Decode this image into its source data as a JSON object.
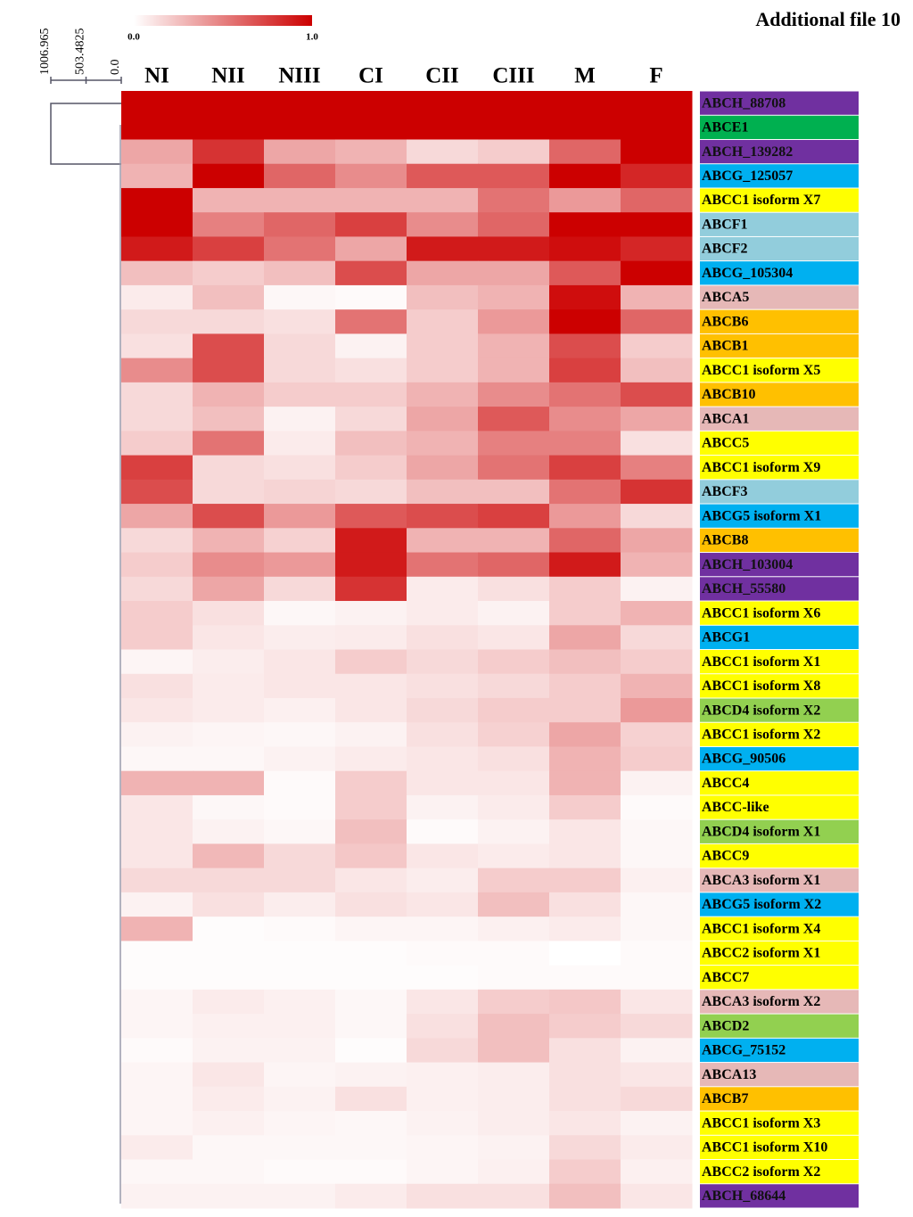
{
  "chart_data": {
    "type": "heatmap",
    "title": "Additional file 10",
    "colormap": [
      "#ffffff",
      "#cc0000"
    ],
    "colorbar_ticks": [
      {
        "value": 0,
        "label": "0.0"
      },
      {
        "value": 1,
        "label": "1.0"
      }
    ],
    "dendrogram_ticks": [
      {
        "value": 1006.965,
        "label": "1006.965"
      },
      {
        "value": 503.4825,
        "label": "503.4825"
      },
      {
        "value": 0,
        "label": "0.0"
      }
    ],
    "columns": [
      "NI",
      "NII",
      "NIII",
      "CI",
      "CII",
      "CIII",
      "M",
      "F"
    ],
    "rows": [
      {
        "label": "ABCH_88708",
        "color": "#7030a0",
        "values": [
          1,
          1,
          1,
          1,
          1,
          1,
          1,
          1
        ]
      },
      {
        "label": "ABCE1",
        "color": "#00b050",
        "values": [
          1,
          1,
          1,
          1,
          1,
          1,
          1,
          1
        ]
      },
      {
        "label": "ABCH_139282",
        "color": "#7030a0",
        "values": [
          0.35,
          0.8,
          0.35,
          0.3,
          0.15,
          0.2,
          0.6,
          1
        ]
      },
      {
        "label": "ABCG_125057",
        "color": "#00b0f0",
        "values": [
          0.3,
          1,
          0.6,
          0.45,
          0.65,
          0.65,
          1,
          0.85
        ]
      },
      {
        "label": "ABCC1 isoform X7",
        "color": "#ffff00",
        "values": [
          1,
          0.3,
          0.3,
          0.3,
          0.3,
          0.55,
          0.4,
          0.6
        ]
      },
      {
        "label": "ABCF1",
        "color": "#92cddc",
        "values": [
          1,
          0.5,
          0.6,
          0.75,
          0.45,
          0.6,
          1,
          1
        ]
      },
      {
        "label": "ABCF2",
        "color": "#92cddc",
        "values": [
          0.9,
          0.75,
          0.55,
          0.35,
          0.9,
          0.9,
          0.95,
          0.85
        ]
      },
      {
        "label": "ABCG_105304",
        "color": "#00b0f0",
        "values": [
          0.25,
          0.2,
          0.25,
          0.7,
          0.35,
          0.35,
          0.65,
          1
        ]
      },
      {
        "label": "ABCA5",
        "color": "#e6b8b7",
        "values": [
          0.08,
          0.25,
          0.03,
          0.02,
          0.25,
          0.3,
          0.95,
          0.3
        ]
      },
      {
        "label": "ABCB6",
        "color": "#ffc000",
        "values": [
          0.15,
          0.15,
          0.12,
          0.55,
          0.2,
          0.4,
          1,
          0.6
        ]
      },
      {
        "label": "ABCB1",
        "color": "#ffc000",
        "values": [
          0.12,
          0.7,
          0.15,
          0.05,
          0.2,
          0.3,
          0.7,
          0.2
        ]
      },
      {
        "label": "ABCC1 isoform X5",
        "color": "#ffff00",
        "values": [
          0.45,
          0.7,
          0.15,
          0.12,
          0.2,
          0.3,
          0.75,
          0.25
        ]
      },
      {
        "label": "ABCB10",
        "color": "#ffc000",
        "values": [
          0.15,
          0.3,
          0.2,
          0.2,
          0.3,
          0.45,
          0.55,
          0.7
        ]
      },
      {
        "label": "ABCA1",
        "color": "#e6b8b7",
        "values": [
          0.15,
          0.25,
          0.05,
          0.15,
          0.35,
          0.65,
          0.45,
          0.35
        ]
      },
      {
        "label": "ABCC5",
        "color": "#ffff00",
        "values": [
          0.2,
          0.55,
          0.08,
          0.25,
          0.3,
          0.5,
          0.5,
          0.12
        ]
      },
      {
        "label": "ABCC1 isoform X9",
        "color": "#ffff00",
        "values": [
          0.75,
          0.15,
          0.12,
          0.2,
          0.35,
          0.55,
          0.75,
          0.5
        ]
      },
      {
        "label": "ABCF3",
        "color": "#92cddc",
        "values": [
          0.7,
          0.15,
          0.17,
          0.15,
          0.25,
          0.25,
          0.55,
          0.8
        ]
      },
      {
        "label": "ABCG5 isoform X1",
        "color": "#00b0f0",
        "values": [
          0.35,
          0.7,
          0.4,
          0.65,
          0.7,
          0.75,
          0.4,
          0.15
        ]
      },
      {
        "label": "ABCB8",
        "color": "#ffc000",
        "values": [
          0.15,
          0.3,
          0.18,
          0.9,
          0.3,
          0.3,
          0.6,
          0.35
        ]
      },
      {
        "label": "ABCH_103004",
        "color": "#7030a0",
        "values": [
          0.2,
          0.45,
          0.4,
          0.9,
          0.55,
          0.6,
          0.9,
          0.3
        ]
      },
      {
        "label": "ABCH_55580",
        "color": "#7030a0",
        "values": [
          0.15,
          0.35,
          0.15,
          0.8,
          0.08,
          0.12,
          0.2,
          0.05
        ]
      },
      {
        "label": "ABCC1 isoform X6",
        "color": "#ffff00",
        "values": [
          0.2,
          0.12,
          0.03,
          0.05,
          0.08,
          0.05,
          0.2,
          0.3
        ]
      },
      {
        "label": "ABCG1",
        "color": "#00b0f0",
        "values": [
          0.2,
          0.1,
          0.07,
          0.08,
          0.12,
          0.1,
          0.35,
          0.15
        ]
      },
      {
        "label": "ABCC1 isoform X1",
        "color": "#ffff00",
        "values": [
          0.04,
          0.07,
          0.1,
          0.2,
          0.15,
          0.2,
          0.25,
          0.2
        ]
      },
      {
        "label": "ABCC1 isoform X8",
        "color": "#ffff00",
        "values": [
          0.12,
          0.08,
          0.1,
          0.1,
          0.12,
          0.15,
          0.2,
          0.3
        ]
      },
      {
        "label": "ABCD4 isoform X2",
        "color": "#92d050",
        "values": [
          0.1,
          0.08,
          0.06,
          0.1,
          0.15,
          0.2,
          0.2,
          0.4
        ]
      },
      {
        "label": "ABCC1 isoform X2",
        "color": "#ffff00",
        "values": [
          0.05,
          0.04,
          0.03,
          0.05,
          0.12,
          0.18,
          0.35,
          0.18
        ]
      },
      {
        "label": "ABCG_90506",
        "color": "#00b0f0",
        "values": [
          0.03,
          0.03,
          0.05,
          0.08,
          0.1,
          0.12,
          0.3,
          0.2
        ]
      },
      {
        "label": "ABCC4",
        "color": "#ffff00",
        "values": [
          0.3,
          0.3,
          0.02,
          0.2,
          0.1,
          0.1,
          0.3,
          0.05
        ]
      },
      {
        "label": "ABCC-like",
        "color": "#ffff00",
        "values": [
          0.1,
          0.03,
          0.02,
          0.2,
          0.05,
          0.08,
          0.2,
          0.02
        ]
      },
      {
        "label": "ABCD4 isoform X1",
        "color": "#92d050",
        "values": [
          0.1,
          0.05,
          0.03,
          0.25,
          0.02,
          0.05,
          0.1,
          0.03
        ]
      },
      {
        "label": "ABCC9",
        "color": "#ffff00",
        "values": [
          0.1,
          0.28,
          0.15,
          0.22,
          0.1,
          0.08,
          0.1,
          0.03
        ]
      },
      {
        "label": "ABCA3 isoform X1",
        "color": "#e6b8b7",
        "values": [
          0.15,
          0.15,
          0.15,
          0.1,
          0.07,
          0.2,
          0.2,
          0.06
        ]
      },
      {
        "label": "ABCG5 isoform X2",
        "color": "#00b0f0",
        "values": [
          0.05,
          0.12,
          0.07,
          0.12,
          0.1,
          0.25,
          0.12,
          0.03
        ]
      },
      {
        "label": "ABCC1 isoform X4",
        "color": "#ffff00",
        "values": [
          0.3,
          0.01,
          0.02,
          0.04,
          0.04,
          0.06,
          0.08,
          0.03
        ]
      },
      {
        "label": "ABCC2 isoform X1",
        "color": "#ffff00",
        "values": [
          0.01,
          0.01,
          0.01,
          0.01,
          0.02,
          0.02,
          0,
          0.02
        ]
      },
      {
        "label": "ABCC7",
        "color": "#ffff00",
        "values": [
          0.01,
          0.01,
          0.01,
          0.01,
          0.01,
          0.02,
          0.02,
          0.02
        ]
      },
      {
        "label": "ABCA3 isoform X2",
        "color": "#e6b8b7",
        "values": [
          0.04,
          0.08,
          0.06,
          0.03,
          0.1,
          0.2,
          0.22,
          0.1
        ]
      },
      {
        "label": "ABCD2",
        "color": "#92d050",
        "values": [
          0.04,
          0.06,
          0.06,
          0.03,
          0.12,
          0.25,
          0.2,
          0.15
        ]
      },
      {
        "label": "ABCG_75152",
        "color": "#00b0f0",
        "values": [
          0.02,
          0.05,
          0.05,
          0.01,
          0.15,
          0.25,
          0.12,
          0.05
        ]
      },
      {
        "label": "ABCA13",
        "color": "#e6b8b7",
        "values": [
          0.04,
          0.1,
          0.04,
          0.05,
          0.06,
          0.07,
          0.12,
          0.1
        ]
      },
      {
        "label": "ABCB7",
        "color": "#ffc000",
        "values": [
          0.04,
          0.08,
          0.05,
          0.12,
          0.06,
          0.07,
          0.12,
          0.15
        ]
      },
      {
        "label": "ABCC1 isoform X3",
        "color": "#ffff00",
        "values": [
          0.04,
          0.06,
          0.04,
          0.03,
          0.05,
          0.07,
          0.1,
          0.05
        ]
      },
      {
        "label": "ABCC1 isoform X10",
        "color": "#ffff00",
        "values": [
          0.08,
          0.03,
          0.03,
          0.03,
          0.04,
          0.05,
          0.15,
          0.08
        ]
      },
      {
        "label": "ABCC2 isoform X2",
        "color": "#ffff00",
        "values": [
          0.03,
          0.03,
          0.02,
          0.02,
          0.04,
          0.06,
          0.2,
          0.06
        ]
      },
      {
        "label": "ABCH_68644",
        "color": "#7030a0",
        "values": [
          0.05,
          0.05,
          0.05,
          0.08,
          0.12,
          0.12,
          0.25,
          0.1
        ]
      }
    ]
  }
}
